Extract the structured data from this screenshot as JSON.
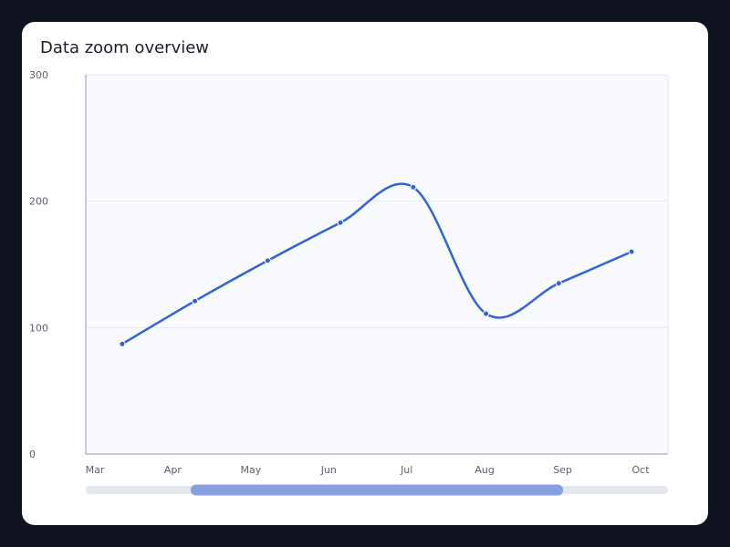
{
  "page": {
    "background": "#0f1420"
  },
  "card": {
    "title": "Data zoom overview"
  },
  "chart_data": {
    "type": "line",
    "title": "Data zoom overview",
    "categories": [
      "Mar",
      "Apr",
      "May",
      "Jun",
      "Jul",
      "Aug",
      "Sep",
      "Oct"
    ],
    "series": [
      {
        "values": [
          87,
          121,
          153,
          183,
          211,
          111,
          135,
          160
        ],
        "color": "#2f64d8",
        "smooth": true,
        "markers": true
      }
    ],
    "ylim": [
      0,
      300
    ],
    "yticks": [
      0,
      100,
      200,
      300
    ],
    "xlabel": "",
    "ylabel": "",
    "grid": true,
    "plot_background": "#f8fafd",
    "data_zoom": {
      "start_fraction": 0.18,
      "end_fraction": 0.82,
      "track_color": "#e3e8f0",
      "handle_color": "#8a9fe0"
    }
  }
}
